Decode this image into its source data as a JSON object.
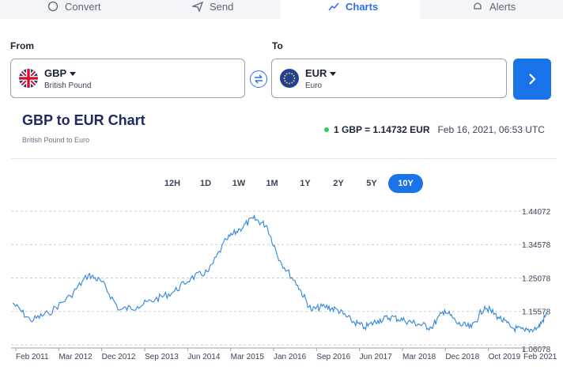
{
  "tabs": [
    {
      "label": "Convert",
      "icon": "convert-icon"
    },
    {
      "label": "Send",
      "icon": "send-icon"
    },
    {
      "label": "Charts",
      "icon": "chart-icon",
      "active": true
    },
    {
      "label": "Alerts",
      "icon": "bell-icon"
    }
  ],
  "from": {
    "label": "From",
    "code": "GBP",
    "name": "British Pound",
    "flag": "uk-flag-icon"
  },
  "to": {
    "label": "To",
    "code": "EUR",
    "name": "Euro",
    "flag": "eu-flag-icon"
  },
  "header": {
    "title": "GBP to EUR Chart",
    "subtitle": "British Pound to Euro"
  },
  "rate": {
    "text": "1 GBP = 1.14732 EUR",
    "datetime": "Feb 16, 2021, 06:53 UTC",
    "status_color": "#2ecc54"
  },
  "ranges": [
    "12H",
    "1D",
    "1W",
    "1M",
    "1Y",
    "2Y",
    "5Y",
    "10Y"
  ],
  "active_range": "10Y",
  "accent": "#1a73e8",
  "chart_data": {
    "type": "line",
    "ylim": [
      1.06078,
      1.44072
    ],
    "y_ticks": [
      "1.44072",
      "1.34578",
      "1.25078",
      "1.15578",
      "1.06078"
    ],
    "x_ticks": [
      "Feb 2011",
      "Mar 2012",
      "Dec 2012",
      "Sep 2013",
      "Jun 2014",
      "Mar 2015",
      "Jan 2016",
      "Sep 2016",
      "Jun 2017",
      "Mar 2018",
      "Dec 2018",
      "Oct 2019",
      "Feb 2021"
    ],
    "x": [
      "2011-02",
      "2011-06",
      "2011-10",
      "2012-03",
      "2012-07",
      "2012-10",
      "2013-02",
      "2013-06",
      "2013-10",
      "2014-02",
      "2014-06",
      "2014-10",
      "2015-02",
      "2015-05",
      "2015-08",
      "2015-11",
      "2016-02",
      "2016-06",
      "2016-09",
      "2016-12",
      "2017-03",
      "2017-06",
      "2017-09",
      "2017-12",
      "2018-03",
      "2018-06",
      "2018-09",
      "2018-12",
      "2019-03",
      "2019-06",
      "2019-09",
      "2019-12",
      "2020-03",
      "2020-06",
      "2020-09",
      "2020-12",
      "2021-02"
    ],
    "values": [
      1.18,
      1.13,
      1.15,
      1.2,
      1.26,
      1.24,
      1.16,
      1.17,
      1.19,
      1.21,
      1.25,
      1.27,
      1.36,
      1.39,
      1.42,
      1.4,
      1.3,
      1.23,
      1.16,
      1.17,
      1.16,
      1.13,
      1.11,
      1.13,
      1.14,
      1.13,
      1.12,
      1.11,
      1.16,
      1.12,
      1.11,
      1.17,
      1.14,
      1.11,
      1.1,
      1.11,
      1.15
    ]
  }
}
